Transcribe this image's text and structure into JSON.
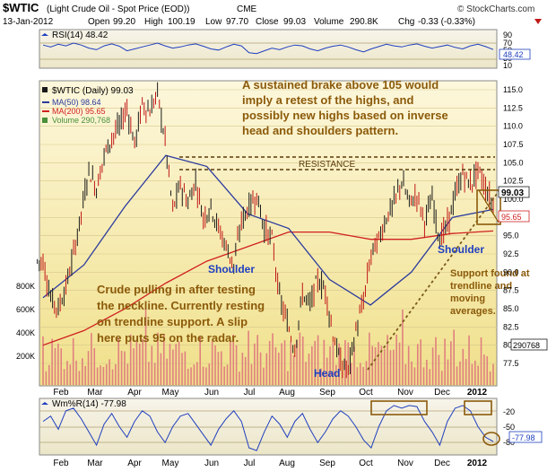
{
  "header": {
    "symbol": "$WTIC",
    "description": "(Light Crude Oil - Spot Price (EOD))",
    "exchange": "CME",
    "copyright": "© StockCharts.com",
    "date": "13-Jan-2012",
    "ohlc": {
      "open_label": "Open",
      "open": "99.20",
      "high_label": "High",
      "high": "100.19",
      "low_label": "Low",
      "low": "97.70",
      "close_label": "Close",
      "close": "99.03",
      "volume_label": "Volume",
      "volume": "290.8K",
      "chg_label": "Chg",
      "chg": "-0.33 (-0.33%)"
    }
  },
  "rsi_panel": {
    "label": "RSI(14) 48.42",
    "current": 48.42,
    "current_label": "48.42",
    "ticks": [
      "90",
      "70",
      "50",
      "30",
      "10"
    ],
    "overbought": 70,
    "oversold": 30,
    "values": [
      60,
      55,
      62,
      58,
      65,
      60,
      52,
      48,
      58,
      63,
      57,
      45,
      50,
      55,
      60,
      65,
      58,
      52,
      55,
      60,
      63,
      57,
      50,
      47,
      55,
      62,
      58,
      40,
      38,
      45,
      52,
      48,
      55,
      60,
      58,
      50,
      45,
      52,
      57,
      60,
      55,
      48,
      42,
      50,
      56,
      62,
      58,
      55,
      60,
      63,
      57,
      52,
      56,
      60,
      54,
      50,
      58,
      62,
      56,
      48.42
    ]
  },
  "price_panel": {
    "title": "$WTIC (Daily) 99.03",
    "legend": [
      {
        "label": "MA(50) 98.64",
        "color": "#2b3a9e"
      },
      {
        "label": "MA(200) 95.65",
        "color": "#d02020"
      },
      {
        "label": "Volume 290,768",
        "color": "#4a8f3a"
      }
    ],
    "y_ticks": [
      "115.0",
      "112.5",
      "110.0",
      "107.5",
      "105.0",
      "102.5",
      "100.0",
      "97.5",
      "95.0",
      "92.5",
      "90.0",
      "87.5",
      "85.0",
      "82.5",
      "80.0",
      "77.5"
    ],
    "volume_ticks": [
      "800K",
      "600K",
      "400K",
      "200K"
    ],
    "last_price_label": "99.03",
    "ma200_label": "95.65",
    "volume_last_label": "290768",
    "annotations": {
      "top_note": [
        "A sustained brake above 105 would",
        "imply a retest of the highs, and",
        "possibly new highs based on inverse",
        "head and shoulders pattern."
      ],
      "resistance": "RESISTANCE",
      "left_shoulder": "Shoulder",
      "right_shoulder": "Shoulder",
      "head": "Head",
      "support_note": [
        "Support found at",
        "trendline and",
        "moving",
        "averages."
      ],
      "bottom_note": [
        "Crude pulling in after testing",
        "the neckline. Currently resting",
        "on trendline support. A slip",
        "here puts 95 on the radar."
      ]
    },
    "colors": {
      "background_top": "#fdf6d8",
      "background_bottom": "#f0e08a",
      "candle_up": "#1a1a1a",
      "candle_down": "#c01818",
      "ma50": "#2b3a9e",
      "ma200": "#d02020",
      "volume": "#e08080",
      "annotation": "#8b5a0a",
      "pattern_label": "#1f3fbf"
    }
  },
  "willr_panel": {
    "label": "Wm%R(14) -77.98",
    "current": -77.98,
    "current_label": "-77.98",
    "ticks": [
      "-20",
      "-50",
      "-80"
    ],
    "values": [
      -40,
      -30,
      -55,
      -20,
      -15,
      -35,
      -60,
      -85,
      -45,
      -25,
      -50,
      -70,
      -40,
      -20,
      -30,
      -60,
      -80,
      -50,
      -30,
      -25,
      -45,
      -65,
      -85,
      -55,
      -35,
      -20,
      -40,
      -90,
      -95,
      -60,
      -30,
      -45,
      -70,
      -40,
      -25,
      -55,
      -80,
      -60,
      -35,
      -20,
      -30,
      -50,
      -75,
      -90,
      -50,
      -20,
      -10,
      -15,
      -10,
      -12,
      -40,
      -60,
      -85,
      -40,
      -15,
      -10,
      -20,
      -50,
      -70,
      -77.98
    ]
  },
  "x_labels": [
    "Feb",
    "Mar",
    "Apr",
    "May",
    "Jun",
    "Jul",
    "Aug",
    "Sep",
    "Oct",
    "Nov",
    "Dec",
    "2012"
  ],
  "chart_data": {
    "type": "line",
    "title": "$WTIC (Daily) 99.03",
    "subtitle": "Light Crude Oil - Spot Price (EOD)",
    "categories": [
      "Feb",
      "Mar",
      "Apr",
      "May",
      "Jun",
      "Jul",
      "Aug",
      "Sep",
      "Oct",
      "Nov",
      "Dec",
      "2012"
    ],
    "ylim": [
      75,
      116
    ],
    "series": [
      {
        "name": "MA(50) 98.64",
        "values": [
          86.5,
          91.0,
          99.0,
          106.0,
          104.5,
          98.0,
          96.0,
          89.0,
          85.5,
          90.0,
          97.5,
          98.6
        ]
      },
      {
        "name": "MA(200) 95.65",
        "values": [
          80.0,
          82.0,
          85.0,
          88.5,
          91.5,
          93.5,
          95.5,
          95.5,
          94.5,
          94.5,
          95.3,
          95.65
        ]
      }
    ],
    "price_path": [
      91.5,
      86.5,
      85.0,
      88.0,
      92.5,
      98.0,
      104.0,
      101.5,
      106.0,
      108.5,
      110.0,
      112.5,
      107.5,
      113.0,
      112.0,
      114.5,
      108.0,
      98.5,
      102.0,
      99.5,
      102.5,
      97.5,
      99.0,
      96.0,
      93.5,
      91.0,
      97.0,
      99.0,
      100.5,
      96.0,
      94.5,
      86.5,
      83.0,
      79.5,
      87.0,
      85.5,
      89.0,
      87.5,
      81.5,
      77.5,
      76.5,
      82.0,
      86.0,
      92.5,
      94.5,
      97.5,
      99.5,
      102.5,
      99.5,
      100.5,
      97.0,
      100.0,
      94.5,
      96.5,
      100.5,
      103.5,
      102.0,
      104.0,
      101.5,
      99.03
    ],
    "annotations": {
      "resistance": [
        104.0,
        102.5
      ],
      "trendline_support": "rising from 77.5 (Oct) to 100 (Jan)"
    }
  }
}
